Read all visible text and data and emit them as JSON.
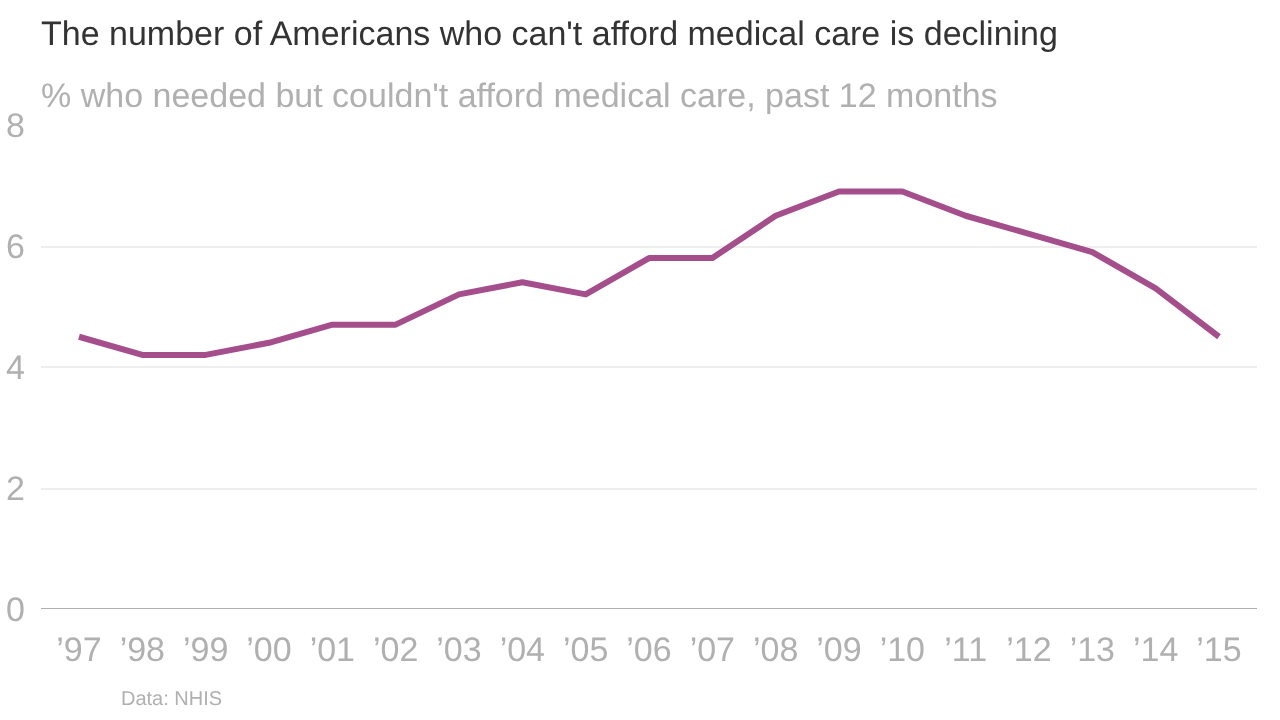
{
  "chart_data": {
    "type": "line",
    "title": "The number of Americans who can't afford medical care is declining",
    "subtitle": "% who needed but couldn't afford medical care, past 12 months",
    "annotations": [
      "Data: NHIS"
    ],
    "categories": [
      "’97",
      "’98",
      "’99",
      "’00",
      "’01",
      "’02",
      "’03",
      "’04",
      "’05",
      "’06",
      "’07",
      "’08",
      "’09",
      "’10",
      "’11",
      "’12",
      "’13",
      "’14",
      "’15"
    ],
    "series": [
      {
        "color": "#a54e8c",
        "values": [
          4.5,
          4.2,
          4.2,
          4.4,
          4.7,
          4.7,
          5.2,
          5.4,
          5.2,
          5.8,
          5.8,
          6.5,
          6.9,
          6.9,
          6.5,
          6.2,
          5.9,
          5.3,
          4.5
        ]
      }
    ],
    "ylim": [
      0,
      8
    ],
    "yticks": [
      0,
      2,
      4,
      6,
      8
    ],
    "grid": "y",
    "line_style": "solid"
  }
}
